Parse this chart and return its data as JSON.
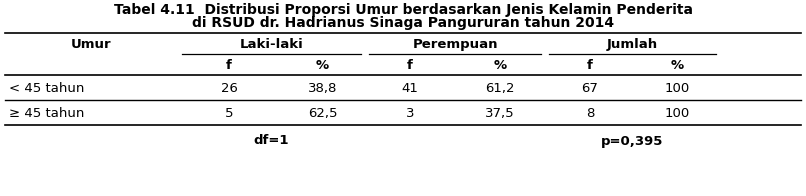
{
  "title_line1": "Tabel 4.11  Distribusi Proporsi Umur berdasarkan Jenis Kelamin Penderita",
  "title_line2": "di RSUD dr. Hadrianus Sinaga Pangururan tahun 2014",
  "col_groups": [
    "Laki-laki",
    "Perempuan",
    "Jumlah"
  ],
  "row_header": "Umur",
  "rows": [
    {
      "label": "< 45 tahun",
      "values": [
        "26",
        "38,8",
        "41",
        "61,2",
        "67",
        "100"
      ]
    },
    {
      "label": "≥ 45 tahun",
      "values": [
        "5",
        "62,5",
        "3",
        "37,5",
        "8",
        "100"
      ]
    }
  ],
  "footer_left": "df=1",
  "footer_right": "p=0,395",
  "bg_color": "#ffffff",
  "text_color": "#000000",
  "font_size_title": 10.0,
  "font_size_body": 9.5,
  "font_size_footer": 9.5
}
